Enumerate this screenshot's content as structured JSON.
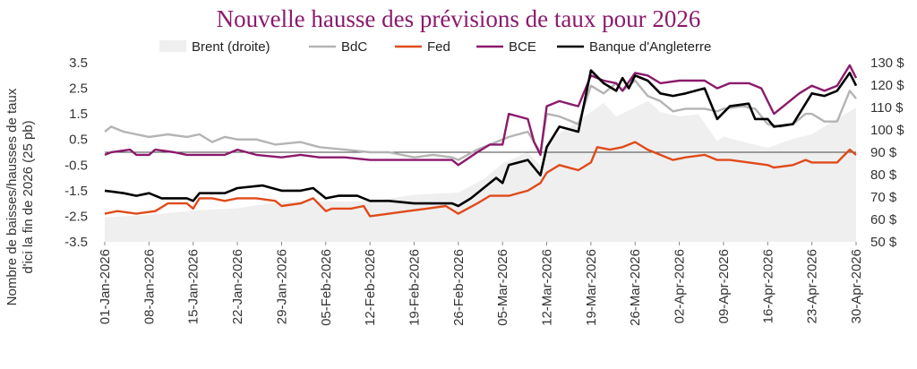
{
  "chart_data": {
    "type": "line",
    "title": "Nouvelle hausse des prévisions de taux pour 2026",
    "ylabel": "Nombre de baisses/hausses de taux d'ici la fin de 2026 (25 pb)",
    "y2label": "",
    "xlabel": "",
    "ylim": [
      -3.5,
      3.5
    ],
    "y2lim": [
      50,
      130
    ],
    "yticks": [
      "3.5",
      "2.5",
      "1.5",
      "0.5",
      "-0.5",
      "-1.5",
      "-2.5",
      "-3.5"
    ],
    "y2ticks": [
      "130 $",
      "120 $",
      "110 $",
      "100 $",
      "90 $",
      "80 $",
      "70 $",
      "60 $",
      "50 $"
    ],
    "xticks": [
      "01-Jan-2026",
      "08-Jan-2026",
      "15-Jan-2026",
      "22-Jan-2026",
      "29-Jan-2026",
      "05-Feb-2026",
      "12-Feb-2026",
      "19-Feb-2026",
      "26-Feb-2026",
      "05-Mar-2026",
      "12-Mar-2026",
      "19-Mar-2026",
      "26-Mar-2026",
      "02-Apr-2026",
      "09-Apr-2026",
      "16-Apr-2026",
      "23-Apr-2026",
      "30-Apr-2026"
    ],
    "legend_position": "top",
    "grid": false,
    "series": [
      {
        "name": "Brent (droite)",
        "type": "area",
        "axis": "right",
        "color": "#efefef",
        "points": [
          [
            "01-Jan-2026",
            61
          ],
          [
            "08-Jan-2026",
            62
          ],
          [
            "15-Jan-2026",
            64
          ],
          [
            "22-Jan-2026",
            65
          ],
          [
            "29-Jan-2026",
            68
          ],
          [
            "05-Feb-2026",
            68
          ],
          [
            "12-Feb-2026",
            68
          ],
          [
            "19-Feb-2026",
            71
          ],
          [
            "26-Feb-2026",
            72
          ],
          [
            "02-Mar-2026",
            78
          ],
          [
            "05-Mar-2026",
            85
          ],
          [
            "09-Mar-2026",
            90
          ],
          [
            "11-Mar-2026",
            84
          ],
          [
            "12-Mar-2026",
            95
          ],
          [
            "16-Mar-2026",
            102
          ],
          [
            "19-Mar-2026",
            108
          ],
          [
            "21-Mar-2026",
            112
          ],
          [
            "23-Mar-2026",
            106
          ],
          [
            "26-Mar-2026",
            110
          ],
          [
            "28-Mar-2026",
            113
          ],
          [
            "30-Mar-2026",
            108
          ],
          [
            "02-Apr-2026",
            106
          ],
          [
            "05-Apr-2026",
            107
          ],
          [
            "08-Apr-2026",
            95
          ],
          [
            "09-Apr-2026",
            97
          ],
          [
            "13-Apr-2026",
            94
          ],
          [
            "16-Apr-2026",
            92
          ],
          [
            "20-Apr-2026",
            96
          ],
          [
            "23-Apr-2026",
            98
          ],
          [
            "27-Apr-2026",
            105
          ],
          [
            "30-Apr-2026",
            110
          ]
        ]
      },
      {
        "name": "BdC",
        "type": "line",
        "axis": "left",
        "color": "#b4b4b4",
        "points": [
          [
            "01-Jan-2026",
            0.8
          ],
          [
            "02-Jan-2026",
            1.0
          ],
          [
            "04-Jan-2026",
            0.8
          ],
          [
            "06-Jan-2026",
            0.7
          ],
          [
            "08-Jan-2026",
            0.6
          ],
          [
            "11-Jan-2026",
            0.7
          ],
          [
            "14-Jan-2026",
            0.6
          ],
          [
            "16-Jan-2026",
            0.7
          ],
          [
            "18-Jan-2026",
            0.4
          ],
          [
            "20-Jan-2026",
            0.6
          ],
          [
            "22-Jan-2026",
            0.5
          ],
          [
            "25-Jan-2026",
            0.5
          ],
          [
            "28-Jan-2026",
            0.3
          ],
          [
            "01-Feb-2026",
            0.4
          ],
          [
            "04-Feb-2026",
            0.2
          ],
          [
            "08-Feb-2026",
            0.1
          ],
          [
            "12-Feb-2026",
            0.0
          ],
          [
            "15-Feb-2026",
            0.0
          ],
          [
            "19-Feb-2026",
            -0.2
          ],
          [
            "22-Feb-2026",
            -0.1
          ],
          [
            "25-Feb-2026",
            -0.2
          ],
          [
            "26-Feb-2026",
            -0.3
          ],
          [
            "01-Mar-2026",
            0.1
          ],
          [
            "04-Mar-2026",
            0.4
          ],
          [
            "06-Mar-2026",
            0.6
          ],
          [
            "09-Mar-2026",
            0.8
          ],
          [
            "11-Mar-2026",
            0.0
          ],
          [
            "12-Mar-2026",
            1.5
          ],
          [
            "14-Mar-2026",
            1.4
          ],
          [
            "17-Mar-2026",
            1.1
          ],
          [
            "19-Mar-2026",
            2.6
          ],
          [
            "21-Mar-2026",
            2.3
          ],
          [
            "23-Mar-2026",
            2.7
          ],
          [
            "24-Mar-2026",
            2.4
          ],
          [
            "26-Mar-2026",
            2.8
          ],
          [
            "28-Mar-2026",
            2.2
          ],
          [
            "30-Mar-2026",
            2.0
          ],
          [
            "01-Apr-2026",
            1.6
          ],
          [
            "03-Apr-2026",
            1.7
          ],
          [
            "06-Apr-2026",
            1.7
          ],
          [
            "08-Apr-2026",
            1.6
          ],
          [
            "09-Apr-2026",
            1.7
          ],
          [
            "12-Apr-2026",
            1.8
          ],
          [
            "14-Apr-2026",
            1.7
          ],
          [
            "16-Apr-2026",
            1.1
          ],
          [
            "18-Apr-2026",
            1.0
          ],
          [
            "20-Apr-2026",
            1.1
          ],
          [
            "22-Apr-2026",
            1.5
          ],
          [
            "23-Apr-2026",
            1.5
          ],
          [
            "25-Apr-2026",
            1.2
          ],
          [
            "27-Apr-2026",
            1.2
          ],
          [
            "29-Apr-2026",
            2.4
          ],
          [
            "30-Apr-2026",
            2.1
          ]
        ]
      },
      {
        "name": "Fed",
        "type": "line",
        "axis": "left",
        "color": "#e04a1a",
        "points": [
          [
            "01-Jan-2026",
            -2.4
          ],
          [
            "03-Jan-2026",
            -2.3
          ],
          [
            "06-Jan-2026",
            -2.4
          ],
          [
            "09-Jan-2026",
            -2.3
          ],
          [
            "11-Jan-2026",
            -2.0
          ],
          [
            "14-Jan-2026",
            -2.0
          ],
          [
            "15-Jan-2026",
            -2.2
          ],
          [
            "16-Jan-2026",
            -1.8
          ],
          [
            "18-Jan-2026",
            -1.8
          ],
          [
            "20-Jan-2026",
            -1.9
          ],
          [
            "22-Jan-2026",
            -1.8
          ],
          [
            "25-Jan-2026",
            -1.8
          ],
          [
            "28-Jan-2026",
            -1.9
          ],
          [
            "29-Jan-2026",
            -2.1
          ],
          [
            "01-Feb-2026",
            -2.0
          ],
          [
            "03-Feb-2026",
            -1.8
          ],
          [
            "05-Feb-2026",
            -2.3
          ],
          [
            "06-Feb-2026",
            -2.2
          ],
          [
            "09-Feb-2026",
            -2.2
          ],
          [
            "11-Feb-2026",
            -2.1
          ],
          [
            "12-Feb-2026",
            -2.5
          ],
          [
            "15-Feb-2026",
            -2.4
          ],
          [
            "18-Feb-2026",
            -2.3
          ],
          [
            "21-Feb-2026",
            -2.2
          ],
          [
            "24-Feb-2026",
            -2.1
          ],
          [
            "26-Feb-2026",
            -2.4
          ],
          [
            "01-Mar-2026",
            -2.0
          ],
          [
            "03-Mar-2026",
            -1.7
          ],
          [
            "06-Mar-2026",
            -1.7
          ],
          [
            "09-Mar-2026",
            -1.5
          ],
          [
            "11-Mar-2026",
            -1.2
          ],
          [
            "12-Mar-2026",
            -0.8
          ],
          [
            "14-Mar-2026",
            -0.5
          ],
          [
            "17-Mar-2026",
            -0.7
          ],
          [
            "19-Mar-2026",
            -0.4
          ],
          [
            "20-Mar-2026",
            0.2
          ],
          [
            "22-Mar-2026",
            0.1
          ],
          [
            "24-Mar-2026",
            0.2
          ],
          [
            "26-Mar-2026",
            0.4
          ],
          [
            "28-Mar-2026",
            0.1
          ],
          [
            "30-Mar-2026",
            -0.1
          ],
          [
            "01-Apr-2026",
            -0.3
          ],
          [
            "03-Apr-2026",
            -0.2
          ],
          [
            "06-Apr-2026",
            -0.1
          ],
          [
            "08-Apr-2026",
            -0.3
          ],
          [
            "10-Apr-2026",
            -0.3
          ],
          [
            "13-Apr-2026",
            -0.4
          ],
          [
            "16-Apr-2026",
            -0.5
          ],
          [
            "17-Apr-2026",
            -0.6
          ],
          [
            "20-Apr-2026",
            -0.5
          ],
          [
            "22-Apr-2026",
            -0.3
          ],
          [
            "23-Apr-2026",
            -0.4
          ],
          [
            "27-Apr-2026",
            -0.4
          ],
          [
            "29-Apr-2026",
            0.1
          ],
          [
            "30-Apr-2026",
            -0.1
          ]
        ]
      },
      {
        "name": "BCE",
        "type": "line",
        "axis": "left",
        "color": "#8b1a6b",
        "points": [
          [
            "01-Jan-2026",
            -0.1
          ],
          [
            "02-Jan-2026",
            0.0
          ],
          [
            "05-Jan-2026",
            0.1
          ],
          [
            "06-Jan-2026",
            -0.1
          ],
          [
            "08-Jan-2026",
            -0.1
          ],
          [
            "09-Jan-2026",
            0.1
          ],
          [
            "12-Jan-2026",
            0.0
          ],
          [
            "14-Jan-2026",
            -0.1
          ],
          [
            "17-Jan-2026",
            -0.1
          ],
          [
            "20-Jan-2026",
            -0.1
          ],
          [
            "22-Jan-2026",
            0.1
          ],
          [
            "25-Jan-2026",
            -0.1
          ],
          [
            "29-Jan-2026",
            -0.2
          ],
          [
            "01-Feb-2026",
            -0.1
          ],
          [
            "04-Feb-2026",
            -0.2
          ],
          [
            "08-Feb-2026",
            -0.2
          ],
          [
            "12-Feb-2026",
            -0.3
          ],
          [
            "15-Feb-2026",
            -0.3
          ],
          [
            "19-Feb-2026",
            -0.3
          ],
          [
            "22-Feb-2026",
            -0.3
          ],
          [
            "25-Feb-2026",
            -0.3
          ],
          [
            "26-Feb-2026",
            -0.5
          ],
          [
            "01-Mar-2026",
            0.0
          ],
          [
            "03-Mar-2026",
            0.3
          ],
          [
            "05-Mar-2026",
            0.3
          ],
          [
            "06-Mar-2026",
            1.5
          ],
          [
            "09-Mar-2026",
            1.3
          ],
          [
            "10-Mar-2026",
            0.4
          ],
          [
            "11-Mar-2026",
            -0.1
          ],
          [
            "12-Mar-2026",
            1.8
          ],
          [
            "14-Mar-2026",
            2.0
          ],
          [
            "17-Mar-2026",
            1.8
          ],
          [
            "19-Mar-2026",
            3.0
          ],
          [
            "21-Mar-2026",
            2.8
          ],
          [
            "23-Mar-2026",
            2.7
          ],
          [
            "24-Mar-2026",
            2.4
          ],
          [
            "26-Mar-2026",
            3.1
          ],
          [
            "28-Mar-2026",
            3.0
          ],
          [
            "30-Mar-2026",
            2.7
          ],
          [
            "02-Apr-2026",
            2.8
          ],
          [
            "06-Apr-2026",
            2.8
          ],
          [
            "08-Apr-2026",
            2.5
          ],
          [
            "10-Apr-2026",
            2.7
          ],
          [
            "13-Apr-2026",
            2.7
          ],
          [
            "15-Apr-2026",
            2.5
          ],
          [
            "17-Apr-2026",
            1.5
          ],
          [
            "19-Apr-2026",
            1.9
          ],
          [
            "21-Apr-2026",
            2.3
          ],
          [
            "23-Apr-2026",
            2.6
          ],
          [
            "25-Apr-2026",
            2.4
          ],
          [
            "27-Apr-2026",
            2.6
          ],
          [
            "29-Apr-2026",
            3.4
          ],
          [
            "30-Apr-2026",
            2.9
          ]
        ]
      },
      {
        "name": "Banque d'Angleterre",
        "type": "line",
        "axis": "left",
        "color": "#000000",
        "points": [
          [
            "01-Jan-2026",
            -1.5
          ],
          [
            "04-Jan-2026",
            -1.6
          ],
          [
            "06-Jan-2026",
            -1.7
          ],
          [
            "08-Jan-2026",
            -1.6
          ],
          [
            "10-Jan-2026",
            -1.8
          ],
          [
            "14-Jan-2026",
            -1.8
          ],
          [
            "15-Jan-2026",
            -1.9
          ],
          [
            "16-Jan-2026",
            -1.6
          ],
          [
            "20-Jan-2026",
            -1.6
          ],
          [
            "22-Jan-2026",
            -1.4
          ],
          [
            "26-Jan-2026",
            -1.3
          ],
          [
            "29-Jan-2026",
            -1.5
          ],
          [
            "01-Feb-2026",
            -1.5
          ],
          [
            "03-Feb-2026",
            -1.4
          ],
          [
            "05-Feb-2026",
            -1.8
          ],
          [
            "07-Feb-2026",
            -1.7
          ],
          [
            "10-Feb-2026",
            -1.7
          ],
          [
            "12-Feb-2026",
            -1.9
          ],
          [
            "15-Feb-2026",
            -1.9
          ],
          [
            "19-Feb-2026",
            -2.0
          ],
          [
            "22-Feb-2026",
            -2.0
          ],
          [
            "25-Feb-2026",
            -2.0
          ],
          [
            "26-Feb-2026",
            -2.1
          ],
          [
            "28-Feb-2026",
            -1.8
          ],
          [
            "02-Mar-2026",
            -1.4
          ],
          [
            "04-Mar-2026",
            -1.0
          ],
          [
            "05-Mar-2026",
            -1.2
          ],
          [
            "06-Mar-2026",
            -0.5
          ],
          [
            "09-Mar-2026",
            -0.3
          ],
          [
            "11-Mar-2026",
            -0.9
          ],
          [
            "12-Mar-2026",
            0.2
          ],
          [
            "14-Mar-2026",
            1.0
          ],
          [
            "17-Mar-2026",
            0.8
          ],
          [
            "19-Mar-2026",
            3.2
          ],
          [
            "21-Mar-2026",
            2.7
          ],
          [
            "23-Mar-2026",
            2.4
          ],
          [
            "24-Mar-2026",
            2.9
          ],
          [
            "25-Mar-2026",
            2.5
          ],
          [
            "26-Mar-2026",
            3.0
          ],
          [
            "28-Mar-2026",
            2.8
          ],
          [
            "30-Mar-2026",
            2.3
          ],
          [
            "01-Apr-2026",
            2.2
          ],
          [
            "03-Apr-2026",
            2.3
          ],
          [
            "06-Apr-2026",
            2.5
          ],
          [
            "08-Apr-2026",
            1.3
          ],
          [
            "10-Apr-2026",
            1.8
          ],
          [
            "13-Apr-2026",
            1.9
          ],
          [
            "14-Apr-2026",
            1.3
          ],
          [
            "16-Apr-2026",
            1.3
          ],
          [
            "17-Apr-2026",
            1.0
          ],
          [
            "20-Apr-2026",
            1.1
          ],
          [
            "23-Apr-2026",
            2.3
          ],
          [
            "25-Apr-2026",
            2.2
          ],
          [
            "27-Apr-2026",
            2.4
          ],
          [
            "29-Apr-2026",
            3.1
          ],
          [
            "30-Apr-2026",
            2.6
          ]
        ]
      }
    ]
  }
}
